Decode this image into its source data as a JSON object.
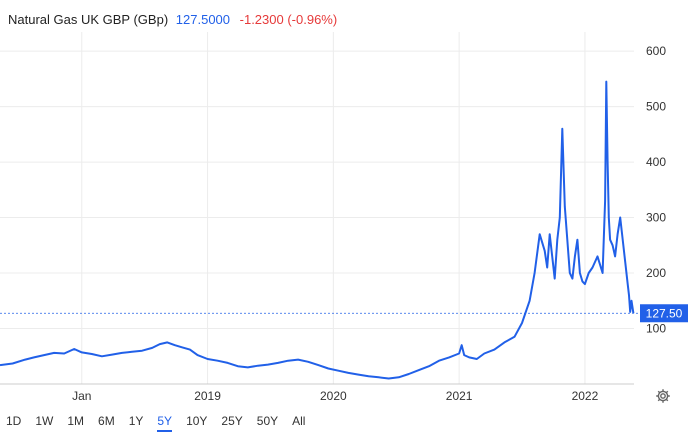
{
  "header": {
    "title": "Natural Gas UK GBP (GBp)",
    "price": "127.5000",
    "change": "-1.2300 (-0.96%)"
  },
  "colors": {
    "accent": "#2160e8",
    "negative": "#e63a3a",
    "grid": "#ececec"
  },
  "range_buttons": [
    "1D",
    "1W",
    "1M",
    "6M",
    "1Y",
    "5Y",
    "10Y",
    "25Y",
    "50Y",
    "All"
  ],
  "active_range": "5Y",
  "settings_icon": "gear-icon",
  "chart_data": {
    "type": "line",
    "title": "Natural Gas UK GBP (GBp)",
    "yticks": [
      100,
      200,
      300,
      400,
      500,
      600
    ],
    "ylim": [
      0,
      620
    ],
    "xticks": [
      {
        "x": 2018.0,
        "label": "Jan"
      },
      {
        "x": 2019.0,
        "label": "2019"
      },
      {
        "x": 2020.0,
        "label": "2020"
      },
      {
        "x": 2021.0,
        "label": "2021"
      },
      {
        "x": 2022.0,
        "label": "2022"
      }
    ],
    "xlim": [
      2017.35,
      2022.39
    ],
    "grid": true,
    "last_value": 127.5,
    "last_label": "127.50",
    "series": [
      {
        "x": [
          2017.35,
          2017.45,
          2017.55,
          2017.62,
          2017.7,
          2017.78,
          2017.86,
          2017.94,
          2018.0,
          2018.08,
          2018.16,
          2018.24,
          2018.32,
          2018.4,
          2018.48,
          2018.56,
          2018.62,
          2018.68,
          2018.74,
          2018.8,
          2018.86,
          2018.92,
          2019.0,
          2019.08,
          2019.16,
          2019.24,
          2019.32,
          2019.4,
          2019.48,
          2019.56,
          2019.64,
          2019.72,
          2019.8,
          2019.88,
          2019.96,
          2020.04,
          2020.12,
          2020.2,
          2020.28,
          2020.36,
          2020.44,
          2020.52,
          2020.6,
          2020.68,
          2020.76,
          2020.84,
          2020.92,
          2021.0,
          2021.02,
          2021.04,
          2021.08,
          2021.14,
          2021.2,
          2021.28,
          2021.36,
          2021.44,
          2021.5,
          2021.56,
          2021.6,
          2021.64,
          2021.68,
          2021.7,
          2021.72,
          2021.74,
          2021.76,
          2021.78,
          2021.8,
          2021.82,
          2021.84,
          2021.86,
          2021.88,
          2021.9,
          2021.92,
          2021.94,
          2021.96,
          2021.98,
          2022.0,
          2022.03,
          2022.06,
          2022.1,
          2022.14,
          2022.16,
          2022.17,
          2022.18,
          2022.19,
          2022.2,
          2022.22,
          2022.24,
          2022.26,
          2022.28,
          2022.3,
          2022.32,
          2022.34,
          2022.35,
          2022.36,
          2022.37,
          2022.385
        ],
        "y": [
          34,
          37,
          44,
          48,
          52,
          56,
          55,
          63,
          57,
          54,
          50,
          53,
          56,
          58,
          60,
          65,
          72,
          75,
          70,
          66,
          62,
          52,
          45,
          42,
          38,
          32,
          30,
          33,
          35,
          38,
          42,
          44,
          40,
          34,
          28,
          24,
          20,
          17,
          14,
          12,
          10,
          12,
          18,
          25,
          32,
          42,
          48,
          55,
          70,
          52,
          48,
          45,
          55,
          62,
          75,
          85,
          110,
          150,
          200,
          270,
          240,
          210,
          270,
          230,
          190,
          260,
          300,
          460,
          320,
          260,
          200,
          190,
          230,
          260,
          200,
          185,
          180,
          200,
          210,
          230,
          200,
          330,
          545,
          400,
          300,
          260,
          250,
          230,
          270,
          300,
          260,
          220,
          180,
          160,
          130,
          150,
          127.5
        ]
      }
    ]
  }
}
